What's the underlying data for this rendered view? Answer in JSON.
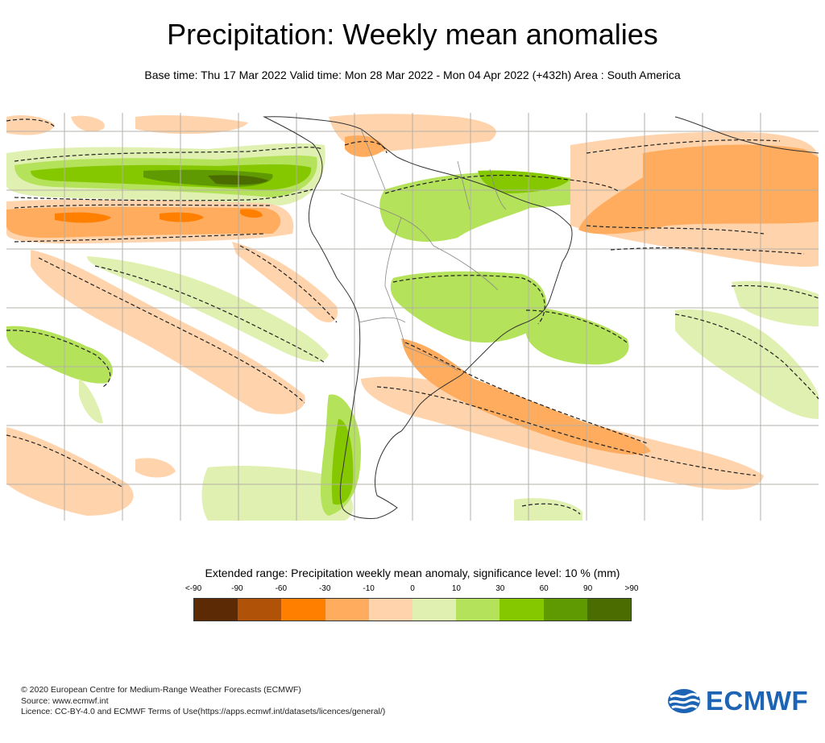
{
  "header": {
    "title": "Precipitation: Weekly mean anomalies",
    "subtitle": "Base time: Thu 17 Mar 2022 Valid time: Mon 28 Mar 2022 - Mon 04 Apr 2022 (+432h) Area : South America"
  },
  "map": {
    "region": "South America",
    "background": "#ffffff",
    "grid_color": "#b4b0a8",
    "coast_color": "#333333",
    "border_color": "#888888"
  },
  "legend": {
    "title": "Extended range: Precipitation weekly mean anomaly, significance level: 10 % (mm)",
    "ticks": [
      "<-90",
      "-90",
      "-60",
      "-30",
      "-10",
      "0",
      "10",
      "30",
      "60",
      "90",
      ">90"
    ],
    "colors": [
      "#5c2b06",
      "#b05208",
      "#ff7f00",
      "#ffac5e",
      "#ffd4ad",
      "#dff0b0",
      "#b4e25a",
      "#86c800",
      "#5f9a02",
      "#4a6c00"
    ]
  },
  "footer": {
    "copyright": "© 2020 European Centre for Medium-Range Weather Forecasts (ECMWF)",
    "source": "Source: www.ecmwf.int",
    "licence": "Licence: CC-BY-4.0 and ECMWF Terms of Use(https://apps.ecmwf.int/datasets/licences/general/)"
  },
  "logo": {
    "text": "ECMWF",
    "color": "#1e64b4"
  }
}
